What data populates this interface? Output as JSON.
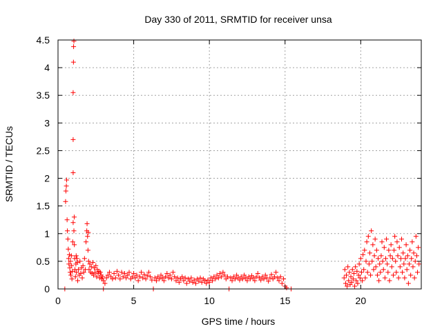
{
  "chart_data": {
    "type": "scatter",
    "title": "Day 330 of 2011, SRMTID for receiver unsa",
    "xlabel": "GPS time / hours",
    "ylabel": "SRMTID / TECUs",
    "xlim": [
      0,
      24
    ],
    "ylim": [
      0,
      4.5
    ],
    "grid": true,
    "marker": "+",
    "color": "#ff0000",
    "x_ticks": [
      {
        "value": 0,
        "label": "0"
      },
      {
        "value": 5,
        "label": "5"
      },
      {
        "value": 10,
        "label": "10"
      },
      {
        "value": 15,
        "label": "15"
      },
      {
        "value": 20,
        "label": "20"
      }
    ],
    "y_ticks": [
      {
        "value": 0,
        "label": "0"
      },
      {
        "value": 0.5,
        "label": "0.5"
      },
      {
        "value": 1,
        "label": "1"
      },
      {
        "value": 1.5,
        "label": "1.5"
      },
      {
        "value": 2,
        "label": "2"
      },
      {
        "value": 2.5,
        "label": "2.5"
      },
      {
        "value": 3,
        "label": "3"
      },
      {
        "value": 3.5,
        "label": "3.5"
      },
      {
        "value": 4,
        "label": "4"
      },
      {
        "value": 4.5,
        "label": "4.5"
      }
    ],
    "series": [
      {
        "name": "SRMTID",
        "points": [
          [
            0.45,
            0.0
          ],
          [
            0.5,
            1.58
          ],
          [
            0.52,
            1.77
          ],
          [
            0.55,
            1.86
          ],
          [
            0.57,
            1.97
          ],
          [
            0.6,
            1.25
          ],
          [
            0.62,
            1.05
          ],
          [
            0.65,
            0.9
          ],
          [
            0.68,
            0.72
          ],
          [
            0.7,
            0.55
          ],
          [
            0.72,
            0.45
          ],
          [
            0.75,
            0.62
          ],
          [
            0.78,
            0.38
          ],
          [
            0.8,
            0.3
          ],
          [
            0.82,
            0.5
          ],
          [
            0.85,
            0.25
          ],
          [
            0.88,
            0.6
          ],
          [
            0.9,
            0.42
          ],
          [
            0.92,
            0.18
          ],
          [
            0.95,
            0.32
          ],
          [
            0.97,
            0.85
          ],
          [
            1.0,
            1.2
          ],
          [
            1.0,
            2.1
          ],
          [
            1.0,
            2.7
          ],
          [
            1.0,
            3.55
          ],
          [
            1.02,
            4.1
          ],
          [
            1.03,
            4.38
          ],
          [
            1.05,
            4.48
          ],
          [
            1.05,
            1.05
          ],
          [
            1.07,
            1.3
          ],
          [
            1.08,
            0.8
          ],
          [
            1.1,
            0.55
          ],
          [
            1.12,
            0.35
          ],
          [
            1.15,
            0.22
          ],
          [
            1.18,
            0.45
          ],
          [
            1.2,
            0.6
          ],
          [
            1.22,
            0.3
          ],
          [
            1.25,
            0.55
          ],
          [
            1.28,
            0.48
          ],
          [
            1.3,
            0.15
          ],
          [
            1.35,
            0.35
          ],
          [
            1.4,
            0.25
          ],
          [
            1.45,
            0.5
          ],
          [
            1.5,
            0.28
          ],
          [
            1.55,
            0.38
          ],
          [
            1.6,
            0.2
          ],
          [
            1.65,
            0.42
          ],
          [
            1.7,
            0.3
          ],
          [
            1.75,
            0.55
          ],
          [
            1.8,
            0.35
          ],
          [
            1.85,
            0.85
          ],
          [
            1.9,
            1.05
          ],
          [
            1.92,
            1.18
          ],
          [
            1.95,
            0.95
          ],
          [
            1.98,
            0.7
          ],
          [
            2.0,
            1.02
          ],
          [
            2.02,
            0.5
          ],
          [
            2.05,
            0.35
          ],
          [
            2.1,
            0.45
          ],
          [
            2.15,
            0.3
          ],
          [
            2.2,
            0.4
          ],
          [
            2.25,
            0.28
          ],
          [
            2.3,
            0.48
          ],
          [
            2.35,
            0.25
          ],
          [
            2.4,
            0.38
          ],
          [
            2.45,
            0.3
          ],
          [
            2.5,
            0.42
          ],
          [
            2.55,
            0.22
          ],
          [
            2.6,
            0.35
          ],
          [
            2.65,
            0.28
          ],
          [
            2.7,
            0.32
          ],
          [
            2.75,
            0.2
          ],
          [
            2.8,
            0.3
          ],
          [
            2.85,
            0.25
          ],
          [
            2.9,
            0.18
          ],
          [
            2.95,
            0.22
          ],
          [
            3.0,
            0.0
          ],
          [
            3.0,
            0.15
          ],
          [
            3.1,
            0.1
          ],
          [
            3.2,
            0.2
          ],
          [
            3.3,
            0.25
          ],
          [
            3.4,
            0.3
          ],
          [
            3.5,
            0.22
          ],
          [
            3.6,
            0.18
          ],
          [
            3.7,
            0.28
          ],
          [
            3.8,
            0.2
          ],
          [
            3.9,
            0.32
          ],
          [
            4.0,
            0.25
          ],
          [
            4.1,
            0.18
          ],
          [
            4.2,
            0.3
          ],
          [
            4.3,
            0.22
          ],
          [
            4.4,
            0.28
          ],
          [
            4.5,
            0.2
          ],
          [
            4.6,
            0.25
          ],
          [
            4.7,
            0.3
          ],
          [
            4.8,
            0.18
          ],
          [
            4.9,
            0.22
          ],
          [
            5.0,
            0.28
          ],
          [
            5.1,
            0.2
          ],
          [
            5.2,
            0.25
          ],
          [
            5.3,
            0.15
          ],
          [
            5.4,
            0.22
          ],
          [
            5.5,
            0.3
          ],
          [
            5.6,
            0.2
          ],
          [
            5.7,
            0.26
          ],
          [
            5.8,
            0.18
          ],
          [
            5.9,
            0.24
          ],
          [
            6.0,
            0.3
          ],
          [
            6.1,
            0.22
          ],
          [
            6.2,
            0.16
          ],
          [
            6.3,
            0.0
          ],
          [
            6.4,
            0.2
          ],
          [
            6.5,
            0.15
          ],
          [
            6.6,
            0.22
          ],
          [
            6.7,
            0.18
          ],
          [
            6.8,
            0.25
          ],
          [
            6.9,
            0.2
          ],
          [
            7.0,
            0.15
          ],
          [
            7.1,
            0.22
          ],
          [
            7.2,
            0.28
          ],
          [
            7.3,
            0.2
          ],
          [
            7.4,
            0.25
          ],
          [
            7.5,
            0.18
          ],
          [
            7.6,
            0.3
          ],
          [
            7.7,
            0.22
          ],
          [
            7.8,
            0.15
          ],
          [
            7.9,
            0.2
          ],
          [
            8.0,
            0.12
          ],
          [
            8.1,
            0.18
          ],
          [
            8.2,
            0.22
          ],
          [
            8.3,
            0.15
          ],
          [
            8.4,
            0.2
          ],
          [
            8.5,
            0.1
          ],
          [
            8.6,
            0.18
          ],
          [
            8.7,
            0.14
          ],
          [
            8.8,
            0.2
          ],
          [
            8.9,
            0.12
          ],
          [
            9.0,
            0.16
          ],
          [
            9.1,
            0.1
          ],
          [
            9.2,
            0.18
          ],
          [
            9.3,
            0.14
          ],
          [
            9.4,
            0.2
          ],
          [
            9.5,
            0.12
          ],
          [
            9.6,
            0.18
          ],
          [
            9.7,
            0.15
          ],
          [
            9.8,
            0.1
          ],
          [
            9.9,
            0.16
          ],
          [
            10.0,
            0.12
          ],
          [
            10.1,
            0.2
          ],
          [
            10.2,
            0.15
          ],
          [
            10.3,
            0.22
          ],
          [
            10.4,
            0.18
          ],
          [
            10.5,
            0.25
          ],
          [
            10.6,
            0.2
          ],
          [
            10.7,
            0.28
          ],
          [
            10.8,
            0.22
          ],
          [
            10.9,
            0.3
          ],
          [
            11.0,
            0.25
          ],
          [
            11.1,
            0.18
          ],
          [
            11.2,
            0.22
          ],
          [
            11.3,
            0.0
          ],
          [
            11.4,
            0.2
          ],
          [
            11.5,
            0.15
          ],
          [
            11.6,
            0.22
          ],
          [
            11.7,
            0.18
          ],
          [
            11.8,
            0.25
          ],
          [
            11.9,
            0.2
          ],
          [
            12.0,
            0.16
          ],
          [
            12.1,
            0.22
          ],
          [
            12.2,
            0.18
          ],
          [
            12.3,
            0.25
          ],
          [
            12.4,
            0.2
          ],
          [
            12.5,
            0.15
          ],
          [
            12.6,
            0.22
          ],
          [
            12.7,
            0.18
          ],
          [
            12.8,
            0.24
          ],
          [
            12.9,
            0.2
          ],
          [
            13.0,
            0.15
          ],
          [
            13.1,
            0.22
          ],
          [
            13.2,
            0.28
          ],
          [
            13.3,
            0.2
          ],
          [
            13.4,
            0.16
          ],
          [
            13.5,
            0.22
          ],
          [
            13.6,
            0.18
          ],
          [
            13.7,
            0.25
          ],
          [
            13.8,
            0.2
          ],
          [
            13.9,
            0.14
          ],
          [
            14.0,
            0.2
          ],
          [
            14.1,
            0.26
          ],
          [
            14.2,
            0.18
          ],
          [
            14.3,
            0.22
          ],
          [
            14.4,
            0.3
          ],
          [
            14.5,
            0.2
          ],
          [
            14.6,
            0.15
          ],
          [
            14.7,
            0.22
          ],
          [
            14.8,
            0.1
          ],
          [
            14.9,
            0.18
          ],
          [
            15.0,
            0.05
          ],
          [
            15.1,
            0.02
          ],
          [
            15.4,
            0.0
          ],
          [
            18.9,
            0.2
          ],
          [
            18.95,
            0.35
          ],
          [
            19.0,
            0.1
          ],
          [
            19.05,
            0.25
          ],
          [
            19.1,
            0.05
          ],
          [
            19.15,
            0.4
          ],
          [
            19.2,
            0.15
          ],
          [
            19.25,
            0.3
          ],
          [
            19.3,
            0.08
          ],
          [
            19.35,
            0.22
          ],
          [
            19.4,
            0.12
          ],
          [
            19.45,
            0.35
          ],
          [
            19.5,
            0.18
          ],
          [
            19.55,
            0.28
          ],
          [
            19.6,
            0.05
          ],
          [
            19.65,
            0.4
          ],
          [
            19.7,
            0.15
          ],
          [
            19.75,
            0.32
          ],
          [
            19.8,
            0.1
          ],
          [
            19.85,
            0.25
          ],
          [
            19.9,
            0.45
          ],
          [
            19.95,
            0.2
          ],
          [
            20.0,
            0.55
          ],
          [
            20.05,
            0.3
          ],
          [
            20.1,
            0.15
          ],
          [
            20.15,
            0.62
          ],
          [
            20.2,
            0.35
          ],
          [
            20.25,
            0.7
          ],
          [
            20.3,
            0.2
          ],
          [
            20.35,
            0.5
          ],
          [
            20.4,
            0.85
          ],
          [
            20.45,
            0.3
          ],
          [
            20.5,
            0.95
          ],
          [
            20.55,
            0.45
          ],
          [
            20.6,
            0.65
          ],
          [
            20.65,
            0.25
          ],
          [
            20.7,
            1.05
          ],
          [
            20.75,
            0.5
          ],
          [
            20.8,
            0.8
          ],
          [
            20.85,
            0.35
          ],
          [
            20.9,
            0.6
          ],
          [
            20.95,
            0.9
          ],
          [
            21.0,
            0.4
          ],
          [
            21.05,
            0.7
          ],
          [
            21.1,
            0.25
          ],
          [
            21.15,
            0.55
          ],
          [
            21.2,
            0.15
          ],
          [
            21.25,
            0.45
          ],
          [
            21.3,
            0.3
          ],
          [
            21.35,
            0.6
          ],
          [
            21.4,
            0.85
          ],
          [
            21.45,
            0.5
          ],
          [
            21.5,
            0.35
          ],
          [
            21.55,
            0.75
          ],
          [
            21.6,
            0.2
          ],
          [
            21.65,
            0.55
          ],
          [
            21.7,
            0.9
          ],
          [
            21.75,
            0.45
          ],
          [
            21.8,
            0.3
          ],
          [
            21.85,
            0.7
          ],
          [
            21.9,
            0.15
          ],
          [
            21.95,
            0.6
          ],
          [
            22.0,
            0.8
          ],
          [
            22.05,
            0.4
          ],
          [
            22.1,
            0.55
          ],
          [
            22.15,
            0.25
          ],
          [
            22.2,
            0.7
          ],
          [
            22.25,
            0.95
          ],
          [
            22.3,
            0.5
          ],
          [
            22.35,
            0.3
          ],
          [
            22.4,
            0.85
          ],
          [
            22.45,
            0.6
          ],
          [
            22.5,
            0.2
          ],
          [
            22.55,
            0.75
          ],
          [
            22.6,
            0.4
          ],
          [
            22.65,
            0.55
          ],
          [
            22.7,
            0.9
          ],
          [
            22.75,
            0.3
          ],
          [
            22.8,
            0.65
          ],
          [
            22.85,
            0.45
          ],
          [
            22.9,
            0.2
          ],
          [
            22.95,
            0.55
          ],
          [
            23.0,
            0.8
          ],
          [
            23.05,
            0.35
          ],
          [
            23.1,
            0.6
          ],
          [
            23.15,
            0.1
          ],
          [
            23.2,
            0.45
          ],
          [
            23.25,
            0.7
          ],
          [
            23.3,
            0.25
          ],
          [
            23.35,
            0.55
          ],
          [
            23.4,
            0.85
          ],
          [
            23.45,
            0.4
          ],
          [
            23.5,
            0.65
          ],
          [
            23.55,
            0.2
          ],
          [
            23.6,
            0.5
          ],
          [
            23.65,
            0.95
          ],
          [
            23.7,
            0.6
          ],
          [
            23.75,
            0.3
          ],
          [
            23.8,
            0.75
          ],
          [
            23.85,
            0.45
          ]
        ]
      }
    ]
  }
}
